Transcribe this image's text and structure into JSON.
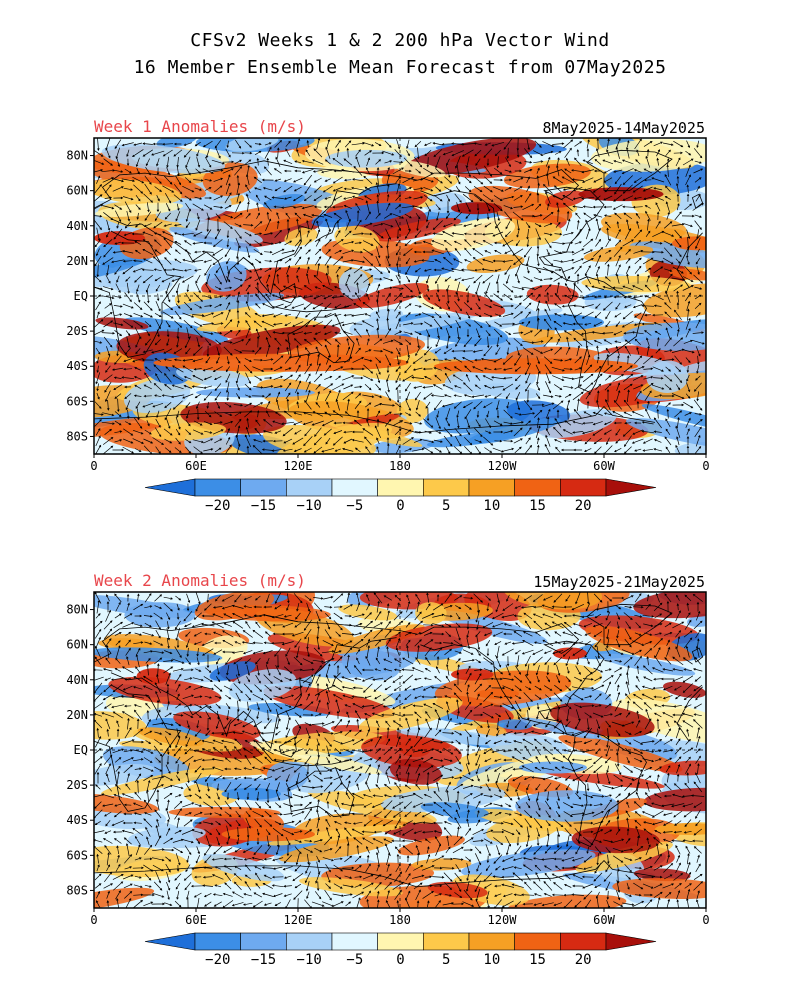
{
  "title": {
    "line1": "CFSv2 Weeks 1 & 2 200 hPa Vector Wind",
    "line2": "16 Member Ensemble Mean Forecast from 07May2025"
  },
  "panels": [
    {
      "label": "Week 1 Anomalies (m/s)",
      "dates": "8May2025-14May2025"
    },
    {
      "label": "Week 2 Anomalies (m/s)",
      "dates": "15May2025-21May2025"
    }
  ],
  "axes": {
    "lat_labels": [
      "80N",
      "60N",
      "40N",
      "20N",
      "EQ",
      "20S",
      "40S",
      "60S",
      "80S"
    ],
    "lon_labels": [
      "0",
      "60E",
      "120E",
      "180",
      "120W",
      "60W",
      "0"
    ]
  },
  "colorbar": {
    "labels": [
      "-20",
      "-15",
      "-10",
      "-5",
      "0",
      "5",
      "10",
      "15",
      "20"
    ],
    "colors": [
      "#1e6fd9",
      "#3c8ee6",
      "#6eaaf0",
      "#a8d1f7",
      "#e1f7ff",
      "#fff6b0",
      "#fdc94a",
      "#f6a024",
      "#f06314",
      "#d62a12",
      "#a80f0a"
    ]
  },
  "colors": {
    "panel_label": "#e8464b",
    "land_outline": "#000000",
    "vectors": "#000000"
  }
}
